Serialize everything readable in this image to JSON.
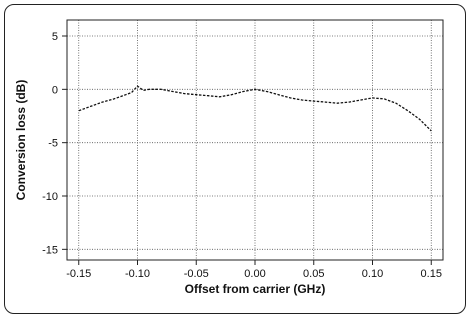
{
  "chart_data": {
    "type": "line",
    "title": "",
    "xlabel": "Offset from carrier (GHz)",
    "ylabel": "Conversion loss (dB)",
    "xlim": [
      -0.16,
      0.16
    ],
    "ylim": [
      -16,
      6.5
    ],
    "xticks": [
      -0.15,
      -0.1,
      -0.05,
      0.0,
      0.05,
      0.1,
      0.15
    ],
    "xtick_labels": [
      "-0.15",
      "-0.10",
      "-0.05",
      "0.00",
      "0.05",
      "0.10",
      "0.15"
    ],
    "yticks": [
      5,
      0,
      -5,
      -10,
      -15
    ],
    "ytick_labels": [
      "5",
      "0",
      "-5",
      "-10",
      "-15"
    ],
    "grid": true,
    "series": [
      {
        "name": "",
        "x": [
          -0.15,
          -0.14,
          -0.13,
          -0.12,
          -0.11,
          -0.105,
          -0.1,
          -0.095,
          -0.09,
          -0.08,
          -0.07,
          -0.06,
          -0.05,
          -0.04,
          -0.03,
          -0.02,
          -0.01,
          0.0,
          0.01,
          0.02,
          0.03,
          0.04,
          0.05,
          0.06,
          0.07,
          0.08,
          0.09,
          0.1,
          0.11,
          0.12,
          0.13,
          0.14,
          0.15
        ],
        "y": [
          -2.0,
          -1.6,
          -1.2,
          -0.9,
          -0.5,
          -0.3,
          0.3,
          -0.1,
          0.0,
          0.0,
          -0.2,
          -0.4,
          -0.5,
          -0.6,
          -0.7,
          -0.5,
          -0.2,
          0.0,
          -0.2,
          -0.5,
          -0.8,
          -1.0,
          -1.1,
          -1.2,
          -1.3,
          -1.2,
          -1.0,
          -0.8,
          -0.9,
          -1.3,
          -2.0,
          -2.8,
          -3.9
        ]
      }
    ]
  }
}
